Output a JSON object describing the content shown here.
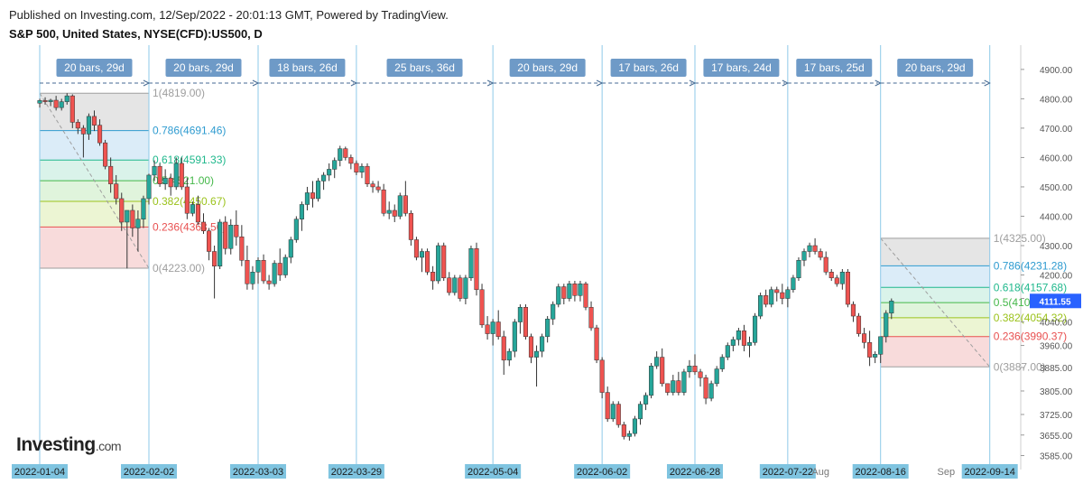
{
  "header": {
    "published": "Published on Investing.com, 12/Sep/2022 - 20:01:13 GMT, Powered by TradingView.",
    "symbol": "S&P 500, United States, NYSE(CFD):US500, D"
  },
  "logo": {
    "brand": "Investing",
    "suffix": ".com"
  },
  "colors": {
    "up": "#26a69a",
    "down": "#ef5350",
    "vline": "#8ec9e8",
    "label_bg": "#6e9ac7",
    "date_bg": "#7fc4e0",
    "price_tag": "#2962ff"
  },
  "chart_data": {
    "type": "candlestick",
    "y_axis": {
      "ylim": [
        3562,
        4958
      ],
      "ticks": [
        "4900.00",
        "4800.00",
        "4700.00",
        "4600.00",
        "4500.00",
        "4400.00",
        "4300.00",
        "4200.00",
        "4120.00",
        "4040.00",
        "3960.00",
        "3885.00",
        "3805.00",
        "3725.00",
        "3655.00",
        "3585.00"
      ]
    },
    "current_price": "4111.55",
    "x_axis_labels": [
      {
        "i": 0,
        "text": "2022-01-04",
        "highlight": true
      },
      {
        "i": 20,
        "text": "2022-02-02",
        "highlight": true
      },
      {
        "i": 40,
        "text": "2022-03-03",
        "highlight": true
      },
      {
        "i": 58,
        "text": "2022-03-29",
        "highlight": true
      },
      {
        "i": 83,
        "text": "2022-05-04",
        "highlight": true
      },
      {
        "i": 103,
        "text": "2022-06-02",
        "highlight": true
      },
      {
        "i": 120,
        "text": "2022-06-28",
        "highlight": true
      },
      {
        "i": 137,
        "text": "2022-07-22",
        "highlight": true
      },
      {
        "i": 143,
        "text": "Aug",
        "highlight": false
      },
      {
        "i": 154,
        "text": "2022-08-16",
        "highlight": true
      },
      {
        "i": 166,
        "text": "Sep",
        "highlight": false
      },
      {
        "i": 174,
        "text": "2022-09-14",
        "highlight": true
      }
    ],
    "ranges": [
      {
        "from": 0,
        "to": 20,
        "label": "20 bars, 29d"
      },
      {
        "from": 20,
        "to": 40,
        "label": "20 bars, 29d"
      },
      {
        "from": 40,
        "to": 58,
        "label": "18 bars, 26d"
      },
      {
        "from": 58,
        "to": 83,
        "label": "25 bars, 36d"
      },
      {
        "from": 83,
        "to": 103,
        "label": "20 bars, 29d"
      },
      {
        "from": 103,
        "to": 120,
        "label": "17 bars, 26d"
      },
      {
        "from": 120,
        "to": 137,
        "label": "17 bars, 24d"
      },
      {
        "from": 137,
        "to": 154,
        "label": "17 bars, 25d"
      },
      {
        "from": 154,
        "to": 174,
        "label": "20 bars, 29d"
      }
    ],
    "fib_sets": [
      {
        "from": 0,
        "to": 20,
        "levels": [
          {
            "label": "1(4819.00)",
            "value": 4819,
            "color": "#9e9e9e"
          },
          {
            "label": "0.786(4691.46)",
            "value": 4691.46,
            "color": "#2e9bd0"
          },
          {
            "label": "0.618(4591.33)",
            "value": 4591.33,
            "color": "#1fb88c"
          },
          {
            "label": "0.5(4521.00)",
            "value": 4521,
            "color": "#45b84a"
          },
          {
            "label": "0.382(4450.67)",
            "value": 4450.67,
            "color": "#9bc21b"
          },
          {
            "label": "0.236(4363.56)",
            "value": 4363.56,
            "color": "#e85050"
          },
          {
            "label": "0(4223.00)",
            "value": 4223,
            "color": "#9e9e9e"
          }
        ]
      },
      {
        "from": 154,
        "to": 174,
        "levels": [
          {
            "label": "1(4325.00)",
            "value": 4325,
            "color": "#9e9e9e"
          },
          {
            "label": "0.786(4231.28)",
            "value": 4231.28,
            "color": "#2e9bd0"
          },
          {
            "label": "0.618(4157.68)",
            "value": 4157.68,
            "color": "#1fb88c"
          },
          {
            "label": "0.5(4106.00)",
            "value": 4106,
            "color": "#45b84a"
          },
          {
            "label": "0.382(4054.32)",
            "value": 4054.32,
            "color": "#9bc21b"
          },
          {
            "label": "0.236(3990.37)",
            "value": 3990.37,
            "color": "#e85050"
          },
          {
            "label": "0(3887.00)",
            "value": 3887,
            "color": "#9e9e9e"
          }
        ]
      }
    ],
    "candles": [
      [
        4785,
        4800,
        4770,
        4794
      ],
      [
        4794,
        4805,
        4780,
        4790
      ],
      [
        4790,
        4800,
        4775,
        4795
      ],
      [
        4795,
        4810,
        4760,
        4770
      ],
      [
        4770,
        4800,
        4760,
        4790
      ],
      [
        4790,
        4819,
        4780,
        4810
      ],
      [
        4810,
        4815,
        4700,
        4720
      ],
      [
        4720,
        4730,
        4680,
        4700
      ],
      [
        4700,
        4710,
        4600,
        4680
      ],
      [
        4680,
        4750,
        4660,
        4740
      ],
      [
        4740,
        4760,
        4690,
        4710
      ],
      [
        4710,
        4730,
        4640,
        4650
      ],
      [
        4650,
        4660,
        4560,
        4570
      ],
      [
        4570,
        4600,
        4480,
        4510
      ],
      [
        4510,
        4540,
        4440,
        4460
      ],
      [
        4460,
        4480,
        4350,
        4380
      ],
      [
        4380,
        4420,
        4222,
        4420
      ],
      [
        4420,
        4440,
        4330,
        4360
      ],
      [
        4360,
        4420,
        4280,
        4390
      ],
      [
        4390,
        4470,
        4360,
        4460
      ],
      [
        4460,
        4545,
        4440,
        4540
      ],
      [
        4540,
        4590,
        4520,
        4570
      ],
      [
        4570,
        4580,
        4500,
        4510
      ],
      [
        4510,
        4560,
        4490,
        4530
      ],
      [
        4530,
        4545,
        4470,
        4500
      ],
      [
        4500,
        4600,
        4490,
        4580
      ],
      [
        4580,
        4600,
        4490,
        4500
      ],
      [
        4500,
        4530,
        4390,
        4410
      ],
      [
        4410,
        4450,
        4400,
        4440
      ],
      [
        4440,
        4470,
        4370,
        4380
      ],
      [
        4380,
        4410,
        4340,
        4350
      ],
      [
        4350,
        4360,
        4250,
        4280
      ],
      [
        4280,
        4300,
        4120,
        4230
      ],
      [
        4230,
        4390,
        4220,
        4380
      ],
      [
        4380,
        4400,
        4270,
        4290
      ],
      [
        4290,
        4390,
        4270,
        4370
      ],
      [
        4370,
        4420,
        4300,
        4330
      ],
      [
        4330,
        4370,
        4230,
        4250
      ],
      [
        4250,
        4300,
        4150,
        4170
      ],
      [
        4170,
        4230,
        4150,
        4210
      ],
      [
        4210,
        4260,
        4170,
        4250
      ],
      [
        4250,
        4270,
        4170,
        4180
      ],
      [
        4180,
        4200,
        4150,
        4170
      ],
      [
        4170,
        4250,
        4160,
        4240
      ],
      [
        4240,
        4290,
        4180,
        4200
      ],
      [
        4200,
        4270,
        4190,
        4260
      ],
      [
        4260,
        4330,
        4240,
        4320
      ],
      [
        4320,
        4400,
        4310,
        4390
      ],
      [
        4390,
        4450,
        4350,
        4440
      ],
      [
        4440,
        4500,
        4420,
        4480
      ],
      [
        4480,
        4520,
        4430,
        4460
      ],
      [
        4460,
        4530,
        4450,
        4520
      ],
      [
        4520,
        4550,
        4490,
        4540
      ],
      [
        4540,
        4580,
        4520,
        4560
      ],
      [
        4560,
        4600,
        4530,
        4590
      ],
      [
        4590,
        4640,
        4570,
        4630
      ],
      [
        4630,
        4637,
        4590,
        4600
      ],
      [
        4600,
        4610,
        4560,
        4580
      ],
      [
        4580,
        4590,
        4540,
        4550
      ],
      [
        4550,
        4580,
        4530,
        4570
      ],
      [
        4570,
        4580,
        4500,
        4510
      ],
      [
        4510,
        4520,
        4480,
        4500
      ],
      [
        4500,
        4520,
        4480,
        4490
      ],
      [
        4490,
        4510,
        4400,
        4410
      ],
      [
        4410,
        4450,
        4390,
        4420
      ],
      [
        4420,
        4440,
        4380,
        4400
      ],
      [
        4400,
        4480,
        4390,
        4470
      ],
      [
        4470,
        4520,
        4400,
        4410
      ],
      [
        4410,
        4420,
        4300,
        4320
      ],
      [
        4320,
        4330,
        4250,
        4260
      ],
      [
        4260,
        4290,
        4210,
        4280
      ],
      [
        4280,
        4290,
        4200,
        4210
      ],
      [
        4210,
        4230,
        4150,
        4180
      ],
      [
        4180,
        4310,
        4170,
        4300
      ],
      [
        4300,
        4310,
        4180,
        4190
      ],
      [
        4190,
        4210,
        4130,
        4140
      ],
      [
        4140,
        4200,
        4130,
        4190
      ],
      [
        4190,
        4200,
        4110,
        4120
      ],
      [
        4120,
        4200,
        4100,
        4190
      ],
      [
        4190,
        4300,
        4180,
        4290
      ],
      [
        4290,
        4310,
        4130,
        4150
      ],
      [
        4150,
        4170,
        4020,
        4030
      ],
      [
        4030,
        4060,
        3980,
        4000
      ],
      [
        4000,
        4050,
        3960,
        4040
      ],
      [
        4040,
        4080,
        3980,
        3990
      ],
      [
        3990,
        4010,
        3860,
        3910
      ],
      [
        3910,
        3950,
        3890,
        3940
      ],
      [
        3940,
        4050,
        3920,
        4040
      ],
      [
        4040,
        4100,
        4000,
        4090
      ],
      [
        4090,
        4100,
        3980,
        3990
      ],
      [
        3990,
        4000,
        3900,
        3920
      ],
      [
        3920,
        3960,
        3820,
        3940
      ],
      [
        3940,
        4000,
        3920,
        3990
      ],
      [
        3990,
        4060,
        3970,
        4050
      ],
      [
        4050,
        4110,
        4030,
        4100
      ],
      [
        4100,
        4170,
        4090,
        4160
      ],
      [
        4160,
        4170,
        4100,
        4120
      ],
      [
        4120,
        4180,
        4110,
        4170
      ],
      [
        4170,
        4180,
        4110,
        4130
      ],
      [
        4130,
        4180,
        4110,
        4170
      ],
      [
        4170,
        4177,
        4080,
        4090
      ],
      [
        4090,
        4110,
        4010,
        4020
      ],
      [
        4020,
        4030,
        3900,
        3910
      ],
      [
        3910,
        3920,
        3780,
        3800
      ],
      [
        3800,
        3820,
        3700,
        3710
      ],
      [
        3710,
        3770,
        3700,
        3760
      ],
      [
        3760,
        3770,
        3680,
        3690
      ],
      [
        3690,
        3700,
        3640,
        3650
      ],
      [
        3650,
        3670,
        3636,
        3660
      ],
      [
        3660,
        3720,
        3650,
        3710
      ],
      [
        3710,
        3770,
        3690,
        3760
      ],
      [
        3760,
        3800,
        3740,
        3790
      ],
      [
        3790,
        3900,
        3780,
        3890
      ],
      [
        3890,
        3940,
        3880,
        3920
      ],
      [
        3920,
        3950,
        3820,
        3830
      ],
      [
        3830,
        3830,
        3790,
        3800
      ],
      [
        3800,
        3860,
        3790,
        3840
      ],
      [
        3840,
        3870,
        3790,
        3800
      ],
      [
        3800,
        3880,
        3790,
        3870
      ],
      [
        3870,
        3910,
        3850,
        3890
      ],
      [
        3890,
        3930,
        3860,
        3870
      ],
      [
        3870,
        3880,
        3820,
        3850
      ],
      [
        3850,
        3860,
        3760,
        3780
      ],
      [
        3780,
        3840,
        3770,
        3830
      ],
      [
        3830,
        3890,
        3820,
        3880
      ],
      [
        3880,
        3930,
        3870,
        3920
      ],
      [
        3920,
        3970,
        3910,
        3960
      ],
      [
        3960,
        3990,
        3940,
        3980
      ],
      [
        3980,
        4020,
        3960,
        4010
      ],
      [
        4010,
        4030,
        3940,
        3960
      ],
      [
        3960,
        3990,
        3920,
        3970
      ],
      [
        3970,
        4070,
        3960,
        4060
      ],
      [
        4060,
        4140,
        4050,
        4130
      ],
      [
        4130,
        4150,
        4090,
        4100
      ],
      [
        4100,
        4160,
        4090,
        4150
      ],
      [
        4150,
        4160,
        4110,
        4140
      ],
      [
        4140,
        4170,
        4100,
        4120
      ],
      [
        4120,
        4160,
        4090,
        4150
      ],
      [
        4150,
        4200,
        4140,
        4190
      ],
      [
        4190,
        4260,
        4180,
        4250
      ],
      [
        4250,
        4290,
        4230,
        4280
      ],
      [
        4280,
        4310,
        4260,
        4300
      ],
      [
        4300,
        4325,
        4270,
        4280
      ],
      [
        4280,
        4290,
        4250,
        4260
      ],
      [
        4260,
        4280,
        4200,
        4210
      ],
      [
        4210,
        4220,
        4180,
        4190
      ],
      [
        4190,
        4200,
        4160,
        4170
      ],
      [
        4170,
        4220,
        4150,
        4210
      ],
      [
        4210,
        4220,
        4090,
        4100
      ],
      [
        4100,
        4110,
        4040,
        4060
      ],
      [
        4060,
        4070,
        3990,
        4000
      ],
      [
        4000,
        4020,
        3950,
        3970
      ],
      [
        3970,
        4010,
        3890,
        3920
      ],
      [
        3920,
        3940,
        3900,
        3930
      ],
      [
        3930,
        3990,
        3900,
        3990
      ],
      [
        3990,
        4080,
        3970,
        4070
      ],
      [
        4070,
        4120,
        4050,
        4111.55
      ]
    ]
  }
}
